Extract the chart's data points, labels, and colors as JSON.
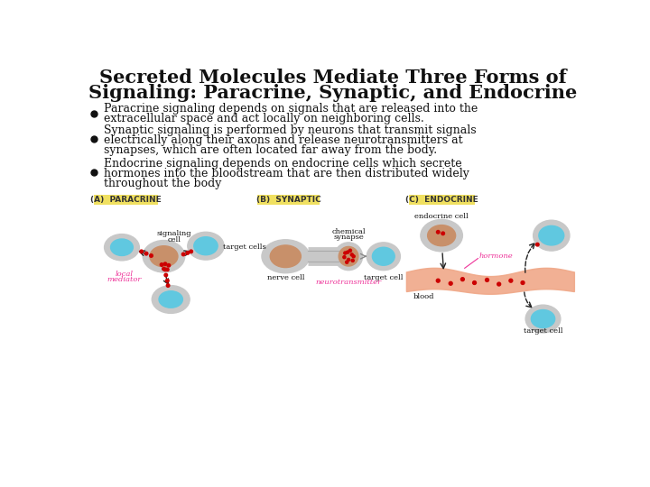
{
  "title_line1": "Secreted Molecules Mediate Three Forms of",
  "title_line2": "Signaling: Paracrine, Synaptic, and Endocrine",
  "bullet1": "Paracrine signaling depends on signals that are released into the\nextracellular space and act locally on neighboring cells.",
  "bullet2": "Synaptic signaling is performed by neurons that transmit signals\nelectrically along their axons and release neurotransmitters at\nsynapses, which are often located far away from the body.",
  "bullet3": "Endocrine signaling depends on endocrine cells which secrete\nhormones into the bloodstream that are then distributed widely\nthroughout the body",
  "bg_color": "#ffffff",
  "title_color": "#111111",
  "text_color": "#111111",
  "bullet_color": "#111111",
  "label_bg": "#f0e060",
  "label_A": "(A)  PARACRINE",
  "label_B": "(B)  SYNAPTIC",
  "label_C": "(C)  ENDOCRINE",
  "cell_gray": "#c8c8c8",
  "cell_blue": "#60c8e0",
  "cell_brown": "#c8906a",
  "blood_color": "#f0a888",
  "signal_color": "#cc0000",
  "hormone_label_color": "#ee3399",
  "arrow_color": "#222222"
}
